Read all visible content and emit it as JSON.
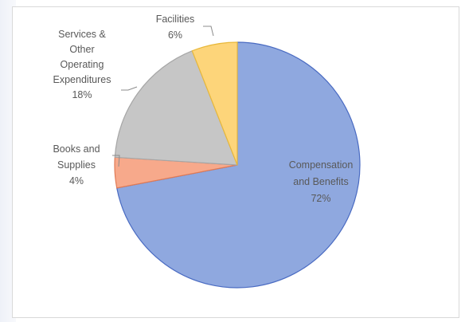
{
  "chart_data": {
    "type": "pie",
    "title": "",
    "start_angle_deg": 0,
    "direction": "clockwise",
    "slices": [
      {
        "label_lines": [
          "Compensation",
          "and Benefits",
          "72%"
        ],
        "value": 72,
        "color": "#8fa8df",
        "stroke": "#4a6bc2"
      },
      {
        "label_lines": [
          "Books and",
          "Supplies",
          "4%"
        ],
        "value": 4,
        "color": "#f7a98b",
        "stroke": "#e07b56"
      },
      {
        "label_lines": [
          "Services &",
          "Other",
          "Operating",
          "Expenditures",
          "18%"
        ],
        "value": 18,
        "color": "#c6c6c6",
        "stroke": "#a6a6a6"
      },
      {
        "label_lines": [
          "Facilities",
          "6%"
        ],
        "value": 6,
        "color": "#fdd57a",
        "stroke": "#e8b83a"
      }
    ]
  }
}
